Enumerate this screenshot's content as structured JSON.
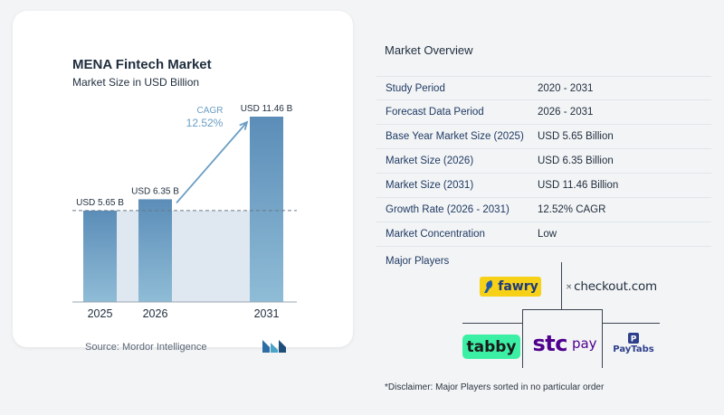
{
  "chart": {
    "title": "MENA Fintech Market",
    "subtitle": "Market Size in USD Billion",
    "source": "Source:  Mordor Intelligence",
    "cagr_label": "CAGR",
    "cagr_value": "12.52%",
    "bar_color": "#5b8db8",
    "bar_color_light": "#8fbcd6",
    "baseline_fill": "#dfe8f1",
    "arrow_color": "#6a9dc5"
  },
  "chart_data": {
    "type": "bar",
    "categories": [
      "2025",
      "2026",
      "2031"
    ],
    "values": [
      5.65,
      6.35,
      11.46
    ],
    "data_labels": [
      "USD 5.65 B",
      "USD 6.35 B",
      "USD 11.46 B"
    ],
    "title": "MENA Fintech Market",
    "subtitle": "Market Size in USD Billion",
    "xlabel": "",
    "ylabel": "",
    "ylim": [
      0,
      11.46
    ],
    "annotation": "CAGR 12.52%"
  },
  "overview": {
    "title": "Market Overview",
    "rows": [
      {
        "label": "Study Period",
        "value": "2020 - 2031"
      },
      {
        "label": "Forecast Data Period",
        "value": "2026 - 2031"
      },
      {
        "label": "Base Year Market Size (2025)",
        "value": "USD 5.65 Billion"
      },
      {
        "label": "Market Size (2026)",
        "value": "USD 6.35 Billion"
      },
      {
        "label": "Market Size (2031)",
        "value": "USD 11.46 Billion"
      },
      {
        "label": "Growth Rate (2026 - 2031)",
        "value": "12.52% CAGR"
      },
      {
        "label": "Market Concentration",
        "value": "Low"
      }
    ]
  },
  "players": {
    "title": "Major Players",
    "fawry": "fawry",
    "checkout": "checkout.com",
    "tabby": "tabby",
    "stc": "stc",
    "stc_pay": "pay",
    "paytabs": "PayTabs",
    "fawry_color": "#f7d117",
    "tabby_color": "#3bf0a4",
    "stc_color": "#4f008c"
  },
  "disclaimer": "*Disclaimer: Major Players sorted in no particular order"
}
